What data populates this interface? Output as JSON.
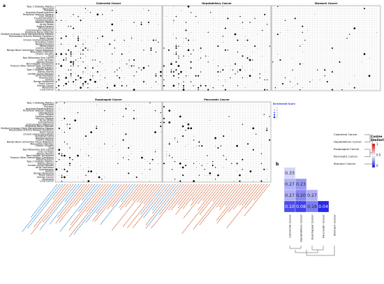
{
  "panel_a_label": "a",
  "panel_b_label": "b",
  "facet_titles": [
    "Colorectal Cancer",
    "Hepatobiliary Cancer",
    "Stomach Cancer",
    "Esophageal Cancer",
    "Pancreatic Cancer"
  ],
  "top_row_labels": [
    "Type 1 Diabetes Mellitus",
    "Glaucoma",
    "Psoriasis",
    "Acquired Hypothyroidism",
    "Peripheral Vascular Disease",
    "Liver Disease",
    "Thyroid Disorders",
    "Cardiomyopathy",
    "Macular Disease",
    "Acute Stroke",
    "Angina Pectoris",
    "Schizophrenia",
    "Subcutaneous Neoplasm",
    "Peripheral Nerve Disorder",
    "Multiple Sclerosis Other Demyelinating Disease",
    "Rheumatoid Arthritis Related Conditions",
    "Heart Failure",
    "Chronic Glomerulonephritis",
    "Ulcerative Colitis",
    "Nonlipid Anemia",
    "Fibromyalgia",
    "Crohn's Disease",
    "Benign Bone Connective Tissue Neoplasm",
    "Myocardial Infarction",
    "Chronic Sinusitis",
    "Gout",
    "Non-Melanoma Skin Cancer",
    "Liver Cirrhosis",
    "Allergic Rhinitis",
    "Non-Hodgkin Lymphoma",
    "Purpura Other Hemorrhagic Conditions",
    "Hypothyroidism",
    "Type 2 Diabetes Mellitus",
    "Kidney Stones",
    "Lumbar Spinal Stenosis",
    "Atrial Fibrillation",
    "Hypertension",
    "Asthma",
    "Benign Melanoma",
    "Brain Cancer",
    "Uterine Cancer",
    "Melanoma",
    "Lung Cancer"
  ],
  "bottom_row_labels": [
    "Type 1 Diabetes Mellitus",
    "Glaucoma",
    "Psoriasis",
    "Acquired Hypothyroidism",
    "Peripheral Vascular Disease",
    "Osteoarthritis",
    "Liver Disease",
    "Cardiomyopathy",
    "Macular Disease",
    "Acute Stroke",
    "Schizophrenia",
    "Subcutaneous Neoplasm",
    "Peripheral Nerve Disorder",
    "Multiple Sclerosis Other Demyelinating Disease",
    "Rheumatoid Arthritis Related Conditions",
    "Heart Failure",
    "Chronic Glomerulonephritis",
    "Ulcerative Colitis",
    "Nonlipid Anemia",
    "Crohn's Disease",
    "Benign Bone Connective Tissue Neoplasm",
    "Myocardial Infarction",
    "Chronic Sinusitis",
    "Gout",
    "Non-Melanoma Skin Cancer",
    "Liver Cirrhosis",
    "Allergic Rhinitis",
    "Non-Hodgkin Lymphoma",
    "Purpura Other Hemorrhagic Conditions",
    "Hypothyroidism",
    "Type 2 Diabetes Mellitus",
    "Kidney Stones",
    "Lumbar Spinal Stenosis",
    "Atrial Fibrillation",
    "Hypertension",
    "Asthma",
    "Benign Melanoma",
    "Brain Cancer",
    "Uterine Cancer",
    "Melanoma",
    "Lung Cancer"
  ],
  "enrichment_legend": {
    "title": "Enrichment Score",
    "levels": [
      "1",
      "2",
      "3",
      "4",
      "5"
    ]
  },
  "colors": {
    "dot": "#000000",
    "grid": "#d9d9d9",
    "label_blue": "#3d8fd6",
    "label_orange": "#d2693e",
    "legend_blue": "#2d3bd6",
    "heat_low": "#1010e6",
    "heat_mid": "#ffffff",
    "heat_high": "#e00000"
  },
  "chart_data": {
    "type": "heatmap",
    "title": "",
    "matrix_labels_x": [
      "Colorectal Cancer",
      "Hepatobiliary Cancer",
      "Esophageal Cancer",
      "Pancreatic Cancer",
      "Stomach Cancer"
    ],
    "matrix_labels_y": [
      "Colorectal Cancer",
      "Hepatobiliary Cancer",
      "Esophageal Cancer",
      "Pancreatic Cancer",
      "Stomach Cancer"
    ],
    "cells": [
      {
        "row": 0,
        "col": 0,
        "value": null
      },
      {
        "row": 1,
        "col": 0,
        "value": 0.33
      },
      {
        "row": 2,
        "col": 0,
        "value": 0.27
      },
      {
        "row": 2,
        "col": 1,
        "value": 0.23
      },
      {
        "row": 3,
        "col": 0,
        "value": 0.27
      },
      {
        "row": 3,
        "col": 1,
        "value": 0.2
      },
      {
        "row": 3,
        "col": 2,
        "value": 0.27
      },
      {
        "row": 4,
        "col": 0,
        "value": 0.1
      },
      {
        "row": 4,
        "col": 1,
        "value": 0.08
      },
      {
        "row": 4,
        "col": 2,
        "value": 0.18
      },
      {
        "row": 4,
        "col": 3,
        "value": 0.04
      }
    ],
    "cell_labels": [
      "0.33",
      "0.27",
      "0.23",
      "0.27",
      "0.20",
      "0.27",
      "0.10",
      "0.08",
      "0.18",
      "0.04"
    ],
    "colorbar": {
      "title": "Cosine\nsimilarity",
      "ticks": [
        "1",
        "0.5",
        "0"
      ]
    },
    "dendrogram_labels": [
      "Colorectal Cancer",
      "Hepatobiliary Cancer",
      "Esophageal Cancer",
      "Pancreatic Cancer",
      "Stomach Cancer"
    ]
  }
}
